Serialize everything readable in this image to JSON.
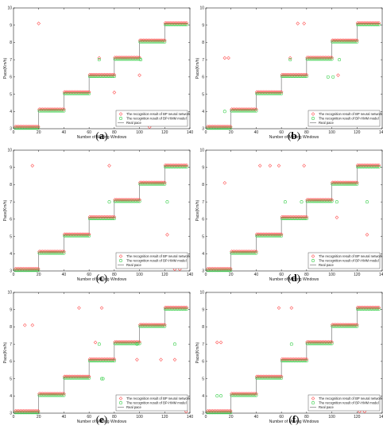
{
  "chart_data": [
    {
      "label": "(a)",
      "type": "scatter",
      "xlabel": "Number of Moving Windows",
      "ylabel": "Pace(Km/h)",
      "xlim": [
        0,
        140
      ],
      "ylim": [
        3,
        10
      ],
      "xticks": [
        0,
        20,
        40,
        60,
        80,
        100,
        120,
        140
      ],
      "yticks": [
        3,
        4,
        5,
        6,
        7,
        8,
        9,
        10
      ],
      "legend_position": "bottom-right",
      "legend": [
        "The recognition result of BP neural network",
        "The recognition result of BP-HMM model",
        "Real pace"
      ],
      "real_pace": [
        [
          1,
          20,
          3.1
        ],
        [
          20,
          40,
          4.1
        ],
        [
          40,
          60,
          5.1
        ],
        [
          60,
          80,
          6.1
        ],
        [
          80,
          100,
          7.1
        ],
        [
          100,
          120,
          8.1
        ],
        [
          120,
          138,
          9.1
        ]
      ],
      "bp_outliers": [
        [
          20,
          9.1
        ],
        [
          68,
          7.1
        ],
        [
          80,
          5.1
        ],
        [
          100,
          6.1
        ],
        [
          108,
          3.1
        ]
      ],
      "hmm_outliers": [
        [
          68,
          7.0
        ],
        [
          101,
          7.0
        ]
      ]
    },
    {
      "label": "(b)",
      "type": "scatter",
      "xlabel": "Number of Moving Windows",
      "ylabel": "Pace(Km/h)",
      "xlim": [
        0,
        140
      ],
      "ylim": [
        3,
        10
      ],
      "xticks": [
        0,
        20,
        40,
        60,
        80,
        100,
        120,
        140
      ],
      "yticks": [
        3,
        4,
        5,
        6,
        7,
        8,
        9,
        10
      ],
      "legend_position": "bottom-right",
      "legend": [
        "The recognition result of BP neural network",
        "The recognition result of BP-HMM model",
        "Real pace"
      ],
      "real_pace": [
        [
          1,
          20,
          3.1
        ],
        [
          20,
          40,
          4.1
        ],
        [
          40,
          60,
          5.1
        ],
        [
          60,
          80,
          6.1
        ],
        [
          80,
          100,
          7.1
        ],
        [
          100,
          120,
          8.1
        ],
        [
          120,
          138,
          9.1
        ]
      ],
      "bp_outliers": [
        [
          15,
          7.1
        ],
        [
          18,
          7.1
        ],
        [
          67,
          7.1
        ],
        [
          73,
          9.1
        ],
        [
          78,
          9.1
        ],
        [
          105,
          6.1
        ]
      ],
      "hmm_outliers": [
        [
          15,
          4.0
        ],
        [
          67,
          7.0
        ],
        [
          97,
          6.0
        ],
        [
          101,
          6.0
        ],
        [
          106,
          7.0
        ]
      ]
    },
    {
      "label": "(c)",
      "type": "scatter",
      "xlabel": "Number of Moving Windows",
      "ylabel": "Pace(Km/h)",
      "xlim": [
        0,
        140
      ],
      "ylim": [
        3,
        10
      ],
      "xticks": [
        0,
        20,
        40,
        60,
        80,
        100,
        120,
        140
      ],
      "yticks": [
        3,
        4,
        5,
        6,
        7,
        8,
        9,
        10
      ],
      "legend_position": "bottom-right",
      "legend": [
        "The recognition result of BP neural network",
        "The recognition result of BP-HMM model",
        "Real pace"
      ],
      "real_pace": [
        [
          1,
          20,
          3.1
        ],
        [
          20,
          40,
          4.1
        ],
        [
          40,
          60,
          5.1
        ],
        [
          60,
          80,
          6.1
        ],
        [
          80,
          100,
          7.1
        ],
        [
          100,
          120,
          8.1
        ],
        [
          120,
          138,
          9.1
        ]
      ],
      "bp_outliers": [
        [
          15,
          9.1
        ],
        [
          76,
          9.1
        ],
        [
          122,
          5.1
        ],
        [
          128,
          3.1
        ],
        [
          132,
          3.1
        ]
      ],
      "hmm_outliers": [
        [
          76,
          7.0
        ],
        [
          122,
          7.0
        ]
      ]
    },
    {
      "label": "(d)",
      "type": "scatter",
      "xlabel": "Number of Moving Windows",
      "ylabel": "Pace(Km/h)",
      "xlim": [
        0,
        140
      ],
      "ylim": [
        3,
        10
      ],
      "xticks": [
        0,
        20,
        40,
        60,
        80,
        100,
        120,
        140
      ],
      "yticks": [
        3,
        4,
        5,
        6,
        7,
        8,
        9,
        10
      ],
      "legend_position": "bottom-right",
      "legend": [
        "The recognition result of BP neural network",
        "The recognition result of BP-HMM model",
        "Real pace"
      ],
      "real_pace": [
        [
          1,
          20,
          3.1
        ],
        [
          20,
          40,
          4.1
        ],
        [
          40,
          60,
          5.1
        ],
        [
          60,
          80,
          6.1
        ],
        [
          80,
          100,
          7.1
        ],
        [
          100,
          120,
          8.1
        ],
        [
          120,
          138,
          9.1
        ]
      ],
      "bp_outliers": [
        [
          15,
          8.1
        ],
        [
          43,
          9.1
        ],
        [
          51,
          9.1
        ],
        [
          58,
          9.1
        ],
        [
          78,
          9.1
        ],
        [
          104,
          6.1
        ],
        [
          128,
          5.1
        ]
      ],
      "hmm_outliers": [
        [
          63,
          7.0
        ],
        [
          76,
          7.0
        ],
        [
          104,
          7.0
        ],
        [
          128,
          7.0
        ]
      ]
    },
    {
      "label": "(e)",
      "type": "scatter",
      "xlabel": "Number of Moving Windows",
      "ylabel": "Pace(Km/h)",
      "xlim": [
        0,
        140
      ],
      "ylim": [
        3,
        10
      ],
      "xticks": [
        0,
        20,
        40,
        60,
        80,
        100,
        120,
        140
      ],
      "yticks": [
        3,
        4,
        5,
        6,
        7,
        8,
        9,
        10
      ],
      "legend_position": "bottom-right",
      "legend": [
        "The recognition result of BP neural network",
        "The recognition result of BP-HMM model",
        "Real pace"
      ],
      "real_pace": [
        [
          1,
          20,
          3.1
        ],
        [
          20,
          40,
          4.1
        ],
        [
          40,
          60,
          5.1
        ],
        [
          60,
          80,
          6.1
        ],
        [
          80,
          100,
          7.1
        ],
        [
          100,
          120,
          8.1
        ],
        [
          120,
          138,
          9.1
        ]
      ],
      "bp_outliers": [
        [
          9,
          8.1
        ],
        [
          15,
          8.1
        ],
        [
          52,
          9.1
        ],
        [
          65,
          7.1
        ],
        [
          70,
          9.1
        ],
        [
          98,
          6.1
        ],
        [
          117,
          6.1
        ],
        [
          128,
          6.1
        ],
        [
          137,
          3.1
        ]
      ],
      "hmm_outliers": [
        [
          68,
          7.0
        ],
        [
          70,
          5.0
        ],
        [
          71,
          5.0
        ],
        [
          98,
          7.0
        ],
        [
          128,
          7.0
        ]
      ]
    },
    {
      "label": "(f)",
      "type": "scatter",
      "xlabel": "Number of Moving Windows",
      "ylabel": "Pace(Km/h)",
      "xlim": [
        0,
        140
      ],
      "ylim": [
        3,
        10
      ],
      "xticks": [
        0,
        20,
        40,
        60,
        80,
        100,
        120,
        140
      ],
      "yticks": [
        3,
        4,
        5,
        6,
        7,
        8,
        9,
        10
      ],
      "legend_position": "bottom-right",
      "legend": [
        "The recognition result of BP neural network",
        "The recognition result of BP-HMM model",
        "Real pace"
      ],
      "real_pace": [
        [
          1,
          20,
          3.1
        ],
        [
          20,
          40,
          4.1
        ],
        [
          40,
          60,
          5.1
        ],
        [
          60,
          80,
          6.1
        ],
        [
          80,
          100,
          7.1
        ],
        [
          100,
          120,
          8.1
        ],
        [
          120,
          138,
          9.1
        ]
      ],
      "bp_outliers": [
        [
          9,
          7.1
        ],
        [
          12,
          7.1
        ],
        [
          58,
          9.1
        ],
        [
          68,
          9.1
        ],
        [
          122,
          3.1
        ],
        [
          126,
          3.1
        ]
      ],
      "hmm_outliers": [
        [
          9,
          4.0
        ],
        [
          12,
          4.0
        ],
        [
          68,
          7.0
        ]
      ]
    }
  ],
  "colors": {
    "bp": "#ff4444",
    "hmm": "#2ecc40",
    "real": "#666666",
    "axis": "#222222"
  }
}
